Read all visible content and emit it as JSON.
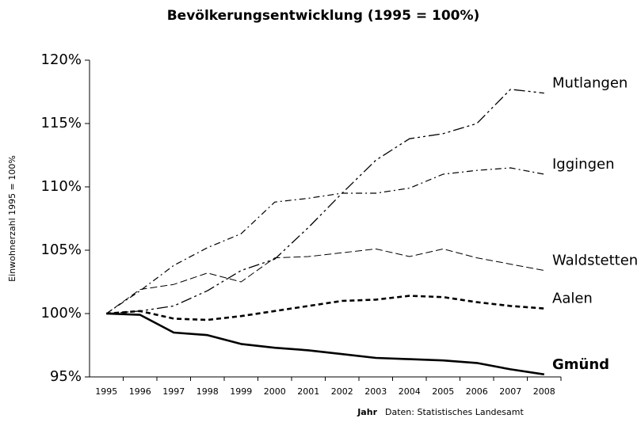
{
  "chart_data": {
    "type": "line",
    "title": "Bevölkerungsentwicklung (1995 = 100%)",
    "y_label": "Einwohnerzahl 1995 = 100%",
    "x_label": "Jahr",
    "source": "Daten: Statistisches Landesamt",
    "categories": [
      "1995",
      "1996",
      "1997",
      "1998",
      "1999",
      "2000",
      "2001",
      "2002",
      "2003",
      "2004",
      "2005",
      "2006",
      "2007",
      "2008"
    ],
    "ylim": [
      95,
      120
    ],
    "yticks": [
      {
        "value": 95,
        "label": "95%"
      },
      {
        "value": 100,
        "label": "100%"
      },
      {
        "value": 105,
        "label": "105%"
      },
      {
        "value": 110,
        "label": "110%"
      },
      {
        "value": 115,
        "label": "115%"
      },
      {
        "value": 120,
        "label": "120%"
      }
    ],
    "series": [
      {
        "name": "Mutlangen",
        "color": "#000000",
        "dash": "14 4 3 4 3 4",
        "width": 1.3,
        "values": [
          100,
          100.2,
          100.6,
          101.8,
          103.4,
          104.3,
          106.8,
          109.5,
          112.1,
          113.8,
          114.2,
          115.0,
          117.7,
          117.4
        ]
      },
      {
        "name": "Iggingen",
        "color": "#000000",
        "dash": "8 4 2 4",
        "width": 1.2,
        "values": [
          100,
          101.8,
          103.8,
          105.2,
          106.3,
          108.8,
          109.1,
          109.5,
          109.5,
          109.9,
          111.0,
          111.3,
          111.5,
          111.0
        ]
      },
      {
        "name": "Waldstetten",
        "color": "#000000",
        "dash": "9 4",
        "width": 1.0,
        "values": [
          100,
          101.9,
          102.3,
          103.2,
          102.5,
          104.4,
          104.5,
          104.8,
          105.1,
          104.5,
          105.1,
          104.4,
          103.9,
          103.4
        ]
      },
      {
        "name": "Aalen",
        "color": "#000000",
        "dash": "6 4",
        "width": 2.6,
        "values": [
          100,
          100.2,
          99.6,
          99.5,
          99.8,
          100.2,
          100.6,
          101.0,
          101.1,
          101.4,
          101.3,
          100.9,
          100.6,
          100.4
        ]
      },
      {
        "name": "Gmünd",
        "color": "#000000",
        "dash": "none",
        "width": 2.6,
        "bold": true,
        "values": [
          100,
          99.9,
          98.5,
          98.3,
          97.6,
          97.3,
          97.1,
          96.8,
          96.5,
          96.4,
          96.3,
          96.1,
          95.6,
          95.2
        ]
      }
    ]
  }
}
